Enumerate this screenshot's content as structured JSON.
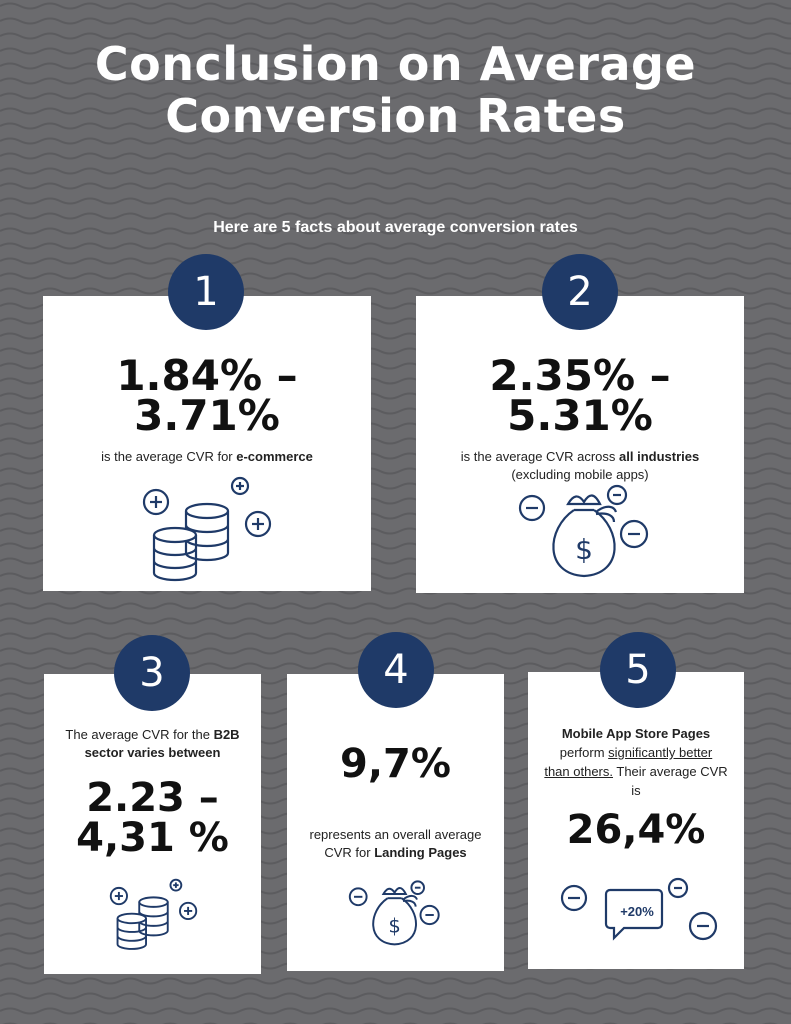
{
  "title_line1": "Conclusion on Average",
  "title_line2": "Conversion Rates",
  "subtitle": "Here are 5 facts about average conversion rates",
  "colors": {
    "background": "#6b6b6e",
    "badge": "#1f3a68",
    "icon": "#1f3a68",
    "card": "#ffffff"
  },
  "cards": [
    {
      "number": "1",
      "value_line1": "1.84% –",
      "value_line2": "3.71%",
      "desc_prefix": "is the average CVR for ",
      "desc_bold": "e-commerce",
      "icon": "coin-stacks-plus-icon"
    },
    {
      "number": "2",
      "value_line1": "2.35% –",
      "value_line2": "5.31%",
      "desc_prefix": "is the average CVR across ",
      "desc_bold": "all industries",
      "desc_line2": "(excluding mobile apps)",
      "icon": "money-bag-minus-icon"
    },
    {
      "number": "3",
      "desc_prefix": "The average CVR for the ",
      "desc_bold1": "B2B",
      "desc_bold2": "sector varies between",
      "value_line1": "2.23 –",
      "value_line2": "4,31 %",
      "icon": "coin-stacks-plus-icon"
    },
    {
      "number": "4",
      "value": "9,7%",
      "desc_line1": "represents an overall average",
      "desc_prefix": "CVR for ",
      "desc_bold": "Landing Pages",
      "icon": "money-bag-minus-icon"
    },
    {
      "number": "5",
      "desc_bold": "Mobile App Store Pages",
      "desc_prefix": "perform ",
      "desc_underline1": "significantly better",
      "desc_underline2": "than others.",
      "desc_suffix": " Their average CVR",
      "desc_last": "is",
      "value": "26,4%",
      "bubble_label": "+20%",
      "icon": "speech-bubble-minus-icon"
    }
  ]
}
